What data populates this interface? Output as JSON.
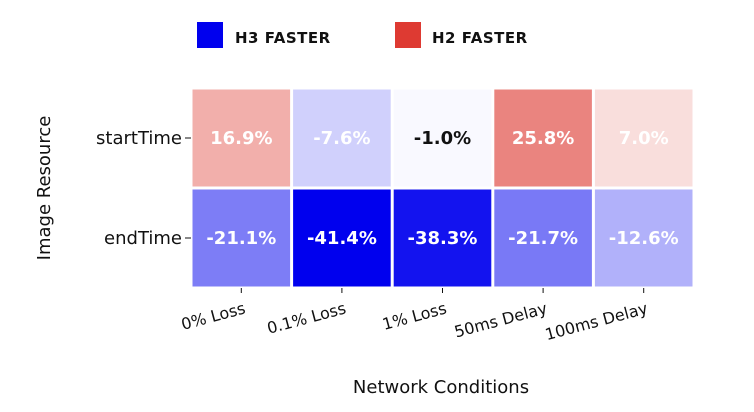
{
  "chart_data": {
    "type": "heatmap",
    "legend": [
      {
        "label": "H3 FASTER",
        "color": "#0000ee"
      },
      {
        "label": "H2 FASTER",
        "color": "#de3a32"
      }
    ],
    "x_categories": [
      "0% Loss",
      "0.1% Loss",
      "1% Loss",
      "50ms Delay",
      "100ms Delay"
    ],
    "y_categories": [
      "startTime",
      "endTime"
    ],
    "values": [
      [
        16.9,
        -7.6,
        -1.0,
        25.8,
        7.0
      ],
      [
        -21.1,
        -41.4,
        -38.3,
        -21.7,
        -12.6
      ]
    ],
    "cell_labels": [
      [
        "16.9%",
        "-7.6%",
        "-1.0%",
        "25.8%",
        "7.0%"
      ],
      [
        "-21.1%",
        "-41.4%",
        "-38.3%",
        "-21.7%",
        "-12.6%"
      ]
    ],
    "xlabel": "Network Conditions",
    "ylabel": "Image Resource",
    "color_range": [
      -41.4,
      41.4
    ],
    "legend_placement": "top"
  }
}
